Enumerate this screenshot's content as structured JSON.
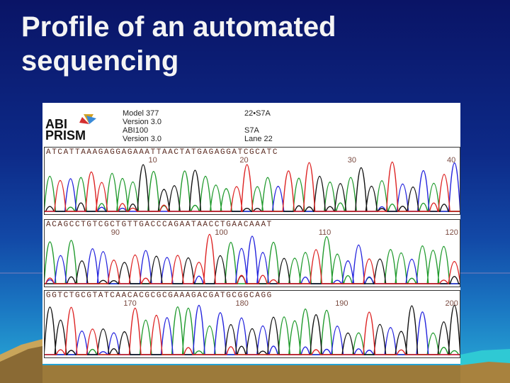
{
  "title": "Profile of an automated sequencing",
  "chromatogram": {
    "logo": {
      "line1": "ABI",
      "line2": "PRISM"
    },
    "meta_left": [
      "Model 377",
      "Version 3.0",
      "ABI100",
      "Version 3.0"
    ],
    "meta_right": [
      "22•S7A",
      "",
      "S7A",
      "Lane 22"
    ],
    "rows": [
      {
        "sequence": "ATCATTAAAGAGGAGAAATTAACTATGAGAGGATCGCATC",
        "positions": [
          {
            "label": "10",
            "at": 0.25
          },
          {
            "label": "20",
            "at": 0.47
          },
          {
            "label": "30",
            "at": 0.73
          },
          {
            "label": "40",
            "at": 0.975
          }
        ]
      },
      {
        "sequence": "ACAGCCTGTCGCTGTTGACCCAGAATAACCTGAACAAAT",
        "positions": [
          {
            "label": "90",
            "at": 0.16
          },
          {
            "label": "100",
            "at": 0.41
          },
          {
            "label": "110",
            "at": 0.66
          },
          {
            "label": "120",
            "at": 0.965
          }
        ]
      },
      {
        "sequence": "GGTCTGCGTATCAACACGCGCGAAAGACGATGCGGCAGG",
        "positions": [
          {
            "label": "170",
            "at": 0.19
          },
          {
            "label": "180",
            "at": 0.46
          },
          {
            "label": "190",
            "at": 0.7
          },
          {
            "label": "200",
            "at": 0.965
          }
        ]
      }
    ],
    "colors": {
      "A": "#1f9a2c",
      "C": "#2222dd",
      "G": "#111111",
      "T": "#dd2222"
    }
  }
}
